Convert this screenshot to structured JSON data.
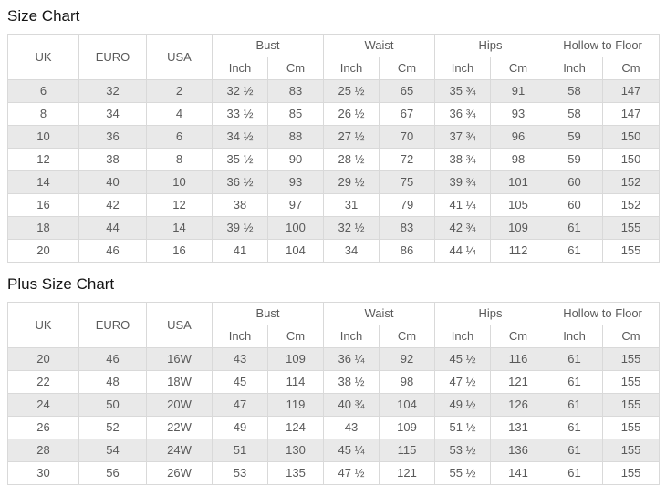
{
  "colors": {
    "stripe_row_bg": "#e9e9e9",
    "table_border": "#d9d9d9",
    "table_text": "#5a5a5a",
    "title_text": "#141414",
    "page_bg": "#ffffff"
  },
  "chart_data": [
    {
      "type": "table",
      "title": "Size Chart",
      "base_columns": [
        "UK",
        "EURO",
        "USA"
      ],
      "measure_groups": [
        "Bust",
        "Waist",
        "Hips",
        "Hollow to Floor"
      ],
      "unit_columns": [
        "Inch",
        "Cm"
      ],
      "rows": [
        [
          "6",
          "32",
          "2",
          "32 ½",
          "83",
          "25 ½",
          "65",
          "35 ¾",
          "91",
          "58",
          "147"
        ],
        [
          "8",
          "34",
          "4",
          "33 ½",
          "85",
          "26 ½",
          "67",
          "36 ¾",
          "93",
          "58",
          "147"
        ],
        [
          "10",
          "36",
          "6",
          "34 ½",
          "88",
          "27 ½",
          "70",
          "37 ¾",
          "96",
          "59",
          "150"
        ],
        [
          "12",
          "38",
          "8",
          "35 ½",
          "90",
          "28 ½",
          "72",
          "38 ¾",
          "98",
          "59",
          "150"
        ],
        [
          "14",
          "40",
          "10",
          "36 ½",
          "93",
          "29 ½",
          "75",
          "39 ¾",
          "101",
          "60",
          "152"
        ],
        [
          "16",
          "42",
          "12",
          "38",
          "97",
          "31",
          "79",
          "41 ¼",
          "105",
          "60",
          "152"
        ],
        [
          "18",
          "44",
          "14",
          "39 ½",
          "100",
          "32 ½",
          "83",
          "42 ¾",
          "109",
          "61",
          "155"
        ],
        [
          "20",
          "46",
          "16",
          "41",
          "104",
          "34",
          "86",
          "44 ¼",
          "112",
          "61",
          "155"
        ]
      ]
    },
    {
      "type": "table",
      "title": "Plus Size Chart",
      "base_columns": [
        "UK",
        "EURO",
        "USA"
      ],
      "measure_groups": [
        "Bust",
        "Waist",
        "Hips",
        "Hollow to Floor"
      ],
      "unit_columns": [
        "Inch",
        "Cm"
      ],
      "rows": [
        [
          "20",
          "46",
          "16W",
          "43",
          "109",
          "36 ¼",
          "92",
          "45 ½",
          "116",
          "61",
          "155"
        ],
        [
          "22",
          "48",
          "18W",
          "45",
          "114",
          "38 ½",
          "98",
          "47 ½",
          "121",
          "61",
          "155"
        ],
        [
          "24",
          "50",
          "20W",
          "47",
          "119",
          "40 ¾",
          "104",
          "49 ½",
          "126",
          "61",
          "155"
        ],
        [
          "26",
          "52",
          "22W",
          "49",
          "124",
          "43",
          "109",
          "51 ½",
          "131",
          "61",
          "155"
        ],
        [
          "28",
          "54",
          "24W",
          "51",
          "130",
          "45 ¼",
          "115",
          "53 ½",
          "136",
          "61",
          "155"
        ],
        [
          "30",
          "56",
          "26W",
          "53",
          "135",
          "47 ½",
          "121",
          "55 ½",
          "141",
          "61",
          "155"
        ]
      ]
    }
  ]
}
